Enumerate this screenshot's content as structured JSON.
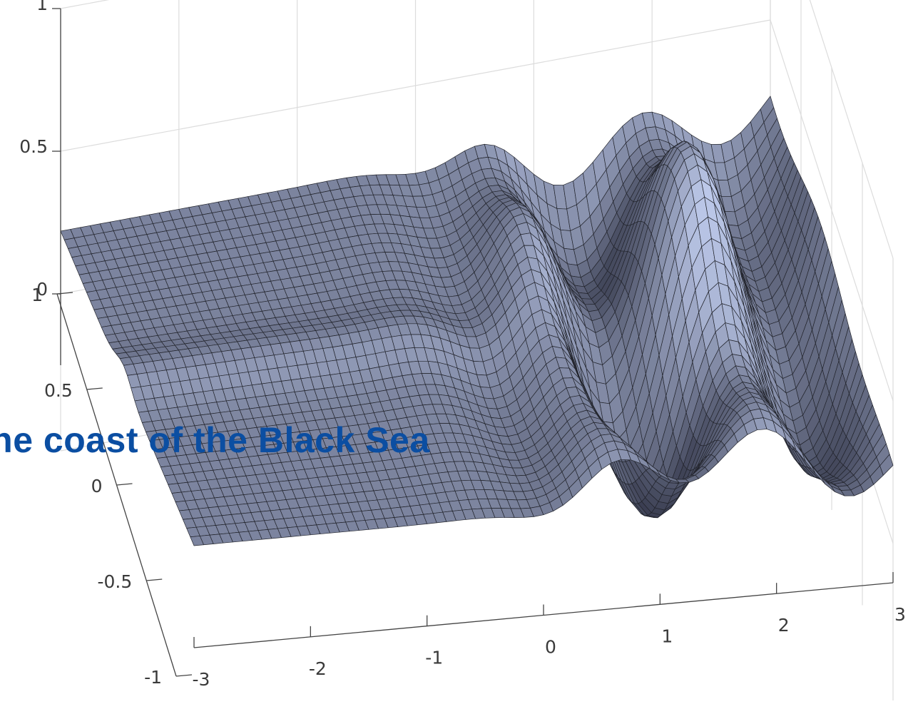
{
  "chart_data": {
    "type": "surface",
    "title": "",
    "xlabel": "",
    "ylabel": "",
    "zlabel": "",
    "x_range": [
      -3,
      3
    ],
    "y_range": [
      -1,
      1
    ],
    "z_range": [
      0,
      1
    ],
    "x_ticks": [
      "-3",
      "-2",
      "-1",
      "0",
      "1",
      "2",
      "3"
    ],
    "y_ticks": [
      "-1",
      "-0.5",
      "0",
      "0.5",
      "1"
    ],
    "z_ticks": [
      "0",
      "0.5",
      "1"
    ],
    "grid": true,
    "colormap": "bone",
    "mesh_x_samples": 72,
    "mesh_y_samples": 36
  },
  "overlay_text": "the coast of the Black Sea",
  "colors": {
    "overlay": "#0b4ea2",
    "grid": "#dcdcdc",
    "axis": "#444444",
    "mesh_edge": "#22242c"
  }
}
